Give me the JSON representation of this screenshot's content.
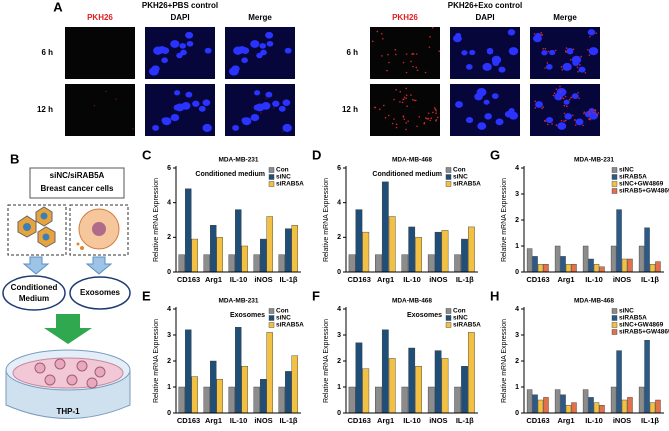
{
  "panel_a": {
    "label": "A",
    "groups": [
      {
        "title": "PKH26+PBS control",
        "columns": [
          "PKH26",
          "DAPI",
          "Merge"
        ],
        "rows": [
          "6 h",
          "12 h"
        ]
      },
      {
        "title": "PKH26+Exo control",
        "columns": [
          "PKH26",
          "DAPI",
          "Merge"
        ],
        "rows": [
          "6 h",
          "12 h"
        ]
      }
    ]
  },
  "panel_b": {
    "label": "B",
    "source_line1": "siNC/siRAB5A",
    "source_line2": "Breast cancer cells",
    "conditioned_medium": [
      "Conditioned",
      "Medium"
    ],
    "exosomes": "Exosomes",
    "target": "THP-1"
  },
  "chart_data": [
    {
      "type": "bar",
      "label": "C",
      "title": "MDA-MB-231",
      "annotation": "Conditioned medium",
      "ylabel": "Relative mRNA Expression",
      "categories": [
        "CD163",
        "Arg1",
        "IL-10",
        "iNOS",
        "IL-1β"
      ],
      "ylim": [
        0,
        6
      ],
      "yticks": [
        0,
        2,
        4,
        6
      ],
      "legend": "upper right",
      "series": [
        {
          "name": "Con",
          "color": "#8c8c8c",
          "values": [
            1,
            1,
            1,
            1,
            1
          ]
        },
        {
          "name": "siNC",
          "color": "#1f4e79",
          "values": [
            4.8,
            2.7,
            3.6,
            1.9,
            2.5
          ]
        },
        {
          "name": "siRAB5A",
          "color": "#f2c144",
          "values": [
            1.9,
            2.0,
            1.5,
            3.2,
            2.7
          ]
        }
      ]
    },
    {
      "type": "bar",
      "label": "D",
      "title": "MDA-MB-468",
      "annotation": "Conditioned medium",
      "ylabel": "Relative mRNA Expression",
      "categories": [
        "CD163",
        "Arg1",
        "IL-10",
        "iNOS",
        "IL-1β"
      ],
      "ylim": [
        0,
        6
      ],
      "yticks": [
        0,
        2,
        4,
        6
      ],
      "legend": "upper right",
      "series": [
        {
          "name": "Con",
          "color": "#8c8c8c",
          "values": [
            1,
            1,
            1,
            1,
            1
          ]
        },
        {
          "name": "siNC",
          "color": "#1f4e79",
          "values": [
            3.6,
            5.2,
            2.6,
            2.3,
            1.9
          ]
        },
        {
          "name": "siRAB5A",
          "color": "#f2c144",
          "values": [
            2.3,
            3.2,
            2.0,
            2.4,
            2.6
          ]
        }
      ]
    },
    {
      "type": "bar",
      "label": "G",
      "title": "MDA-MB-231",
      "ylabel": "Relative mRNA Expression",
      "categories": [
        "CD163",
        "Arg1",
        "IL-10",
        "iNOS",
        "IL-1β"
      ],
      "ylim": [
        0,
        4
      ],
      "yticks": [
        0,
        1,
        2,
        3,
        4
      ],
      "legend": "upper right",
      "series": [
        {
          "name": "siNC",
          "color": "#8c8c8c",
          "values": [
            0.9,
            1.0,
            1.0,
            1.0,
            1.0
          ]
        },
        {
          "name": "siRAB5A",
          "color": "#2b5a8a",
          "values": [
            0.6,
            0.6,
            0.5,
            2.4,
            1.7
          ]
        },
        {
          "name": "siNC+GW4869",
          "color": "#f2c144",
          "values": [
            0.3,
            0.3,
            0.3,
            0.5,
            0.3
          ]
        },
        {
          "name": "siRAB5+GW4869",
          "color": "#e2714b",
          "values": [
            0.3,
            0.3,
            0.2,
            0.5,
            0.4
          ]
        }
      ]
    },
    {
      "type": "bar",
      "label": "E",
      "title": "MDA-MB-231",
      "annotation": "Exosomes",
      "ylabel": "Relative mRNA Expression",
      "categories": [
        "CD163",
        "Arg1",
        "IL-10",
        "iNOS",
        "IL-1β"
      ],
      "ylim": [
        0,
        4
      ],
      "yticks": [
        0,
        1,
        2,
        3,
        4
      ],
      "legend": "upper right",
      "series": [
        {
          "name": "Con",
          "color": "#8c8c8c",
          "values": [
            1,
            1,
            1,
            1,
            1
          ]
        },
        {
          "name": "siNC",
          "color": "#1f4e79",
          "values": [
            3.2,
            2.0,
            3.3,
            1.3,
            1.6
          ]
        },
        {
          "name": "siRAB5A",
          "color": "#f2c144",
          "values": [
            1.4,
            1.3,
            1.8,
            3.1,
            2.2
          ]
        }
      ]
    },
    {
      "type": "bar",
      "label": "F",
      "title": "MDA-MB-468",
      "annotation": "Exosomes",
      "ylabel": "Relative mRNA Expression",
      "categories": [
        "CD163",
        "Arg1",
        "IL-10",
        "iNOS",
        "IL-1β"
      ],
      "ylim": [
        0,
        4
      ],
      "yticks": [
        0,
        1,
        2,
        3,
        4
      ],
      "legend": "upper right",
      "series": [
        {
          "name": "Con",
          "color": "#8c8c8c",
          "values": [
            1,
            1,
            1,
            1,
            1
          ]
        },
        {
          "name": "siNC",
          "color": "#1f4e79",
          "values": [
            2.7,
            3.2,
            2.5,
            2.4,
            1.8
          ]
        },
        {
          "name": "siRAB5A",
          "color": "#f2c144",
          "values": [
            1.7,
            2.1,
            1.8,
            2.1,
            3.1
          ]
        }
      ]
    },
    {
      "type": "bar",
      "label": "H",
      "title": "MDA-MB-468",
      "ylabel": "Relative mRNA Expression",
      "categories": [
        "CD163",
        "Arg1",
        "IL-10",
        "iNOS",
        "IL-1β"
      ],
      "ylim": [
        0,
        4
      ],
      "yticks": [
        0,
        1,
        2,
        3,
        4
      ],
      "legend": "upper right",
      "series": [
        {
          "name": "siNC",
          "color": "#8c8c8c",
          "values": [
            0.9,
            0.9,
            0.9,
            1.0,
            1.0
          ]
        },
        {
          "name": "siRAB5A",
          "color": "#2b5a8a",
          "values": [
            0.7,
            0.7,
            0.6,
            2.4,
            2.8
          ]
        },
        {
          "name": "siNC+GW4869",
          "color": "#f2c144",
          "values": [
            0.5,
            0.3,
            0.4,
            0.5,
            0.4
          ]
        },
        {
          "name": "siRAB5+GW4869",
          "color": "#e2714b",
          "values": [
            0.6,
            0.4,
            0.3,
            0.6,
            0.5
          ]
        }
      ]
    }
  ]
}
